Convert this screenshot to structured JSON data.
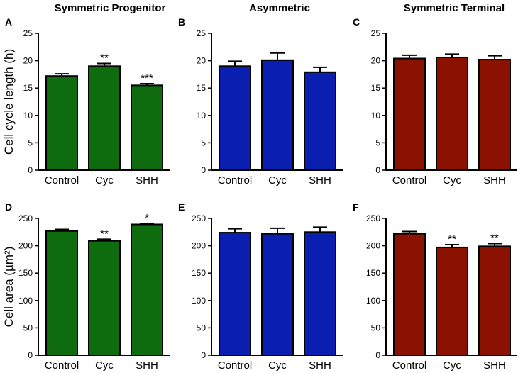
{
  "figure": {
    "column_titles": [
      "Symmetric Progenitor",
      "Asymmetric",
      "Symmetric Terminal"
    ]
  },
  "colors": {
    "green": "#0e6b0e",
    "blue": "#0a1fb0",
    "red": "#8b1200",
    "axis": "#000000"
  },
  "chart_data": [
    {
      "panel": "A",
      "type": "bar",
      "row": 0,
      "col": 0,
      "color": "green",
      "categories": [
        "Control",
        "Cyc",
        "SHH"
      ],
      "values": [
        17.2,
        19.0,
        15.5
      ],
      "errors": [
        0.4,
        0.5,
        0.3
      ],
      "significance": [
        "",
        "**",
        "***"
      ],
      "ylabel": "Cell cycle length (h)",
      "ylim": [
        0,
        25
      ],
      "yticks": [
        0,
        5,
        10,
        15,
        20,
        25
      ]
    },
    {
      "panel": "B",
      "type": "bar",
      "row": 0,
      "col": 1,
      "color": "blue",
      "categories": [
        "Control",
        "Cyc",
        "SHH"
      ],
      "values": [
        19.0,
        20.1,
        17.9
      ],
      "errors": [
        0.9,
        1.3,
        0.9
      ],
      "significance": [
        "",
        "",
        ""
      ],
      "ylabel": "",
      "ylim": [
        0,
        25
      ],
      "yticks": [
        0,
        5,
        10,
        15,
        20,
        25
      ]
    },
    {
      "panel": "C",
      "type": "bar",
      "row": 0,
      "col": 2,
      "color": "red",
      "categories": [
        "Control",
        "Cyc",
        "SHH"
      ],
      "values": [
        20.4,
        20.6,
        20.2
      ],
      "errors": [
        0.6,
        0.6,
        0.7
      ],
      "significance": [
        "",
        "",
        ""
      ],
      "ylabel": "",
      "ylim": [
        0,
        25
      ],
      "yticks": [
        0,
        5,
        10,
        15,
        20,
        25
      ]
    },
    {
      "panel": "D",
      "type": "bar",
      "row": 1,
      "col": 0,
      "color": "green",
      "categories": [
        "Control",
        "Cyc",
        "SHH"
      ],
      "values": [
        227,
        209,
        239
      ],
      "errors": [
        3,
        3,
        2
      ],
      "significance": [
        "",
        "**",
        "*"
      ],
      "ylabel": "Cell area (µm²)",
      "ylim": [
        0,
        250
      ],
      "yticks": [
        0,
        50,
        100,
        150,
        200,
        250
      ]
    },
    {
      "panel": "E",
      "type": "bar",
      "row": 1,
      "col": 1,
      "color": "blue",
      "categories": [
        "Control",
        "Cyc",
        "SHH"
      ],
      "values": [
        224,
        222,
        225
      ],
      "errors": [
        7,
        10,
        9
      ],
      "significance": [
        "",
        "",
        ""
      ],
      "ylabel": "",
      "ylim": [
        0,
        250
      ],
      "yticks": [
        0,
        50,
        100,
        150,
        200,
        250
      ]
    },
    {
      "panel": "F",
      "type": "bar",
      "row": 1,
      "col": 2,
      "color": "red",
      "categories": [
        "Control",
        "Cyc",
        "SHH"
      ],
      "values": [
        222,
        197,
        199
      ],
      "errors": [
        4,
        5,
        5
      ],
      "significance": [
        "",
        "**",
        "**"
      ],
      "ylabel": "",
      "ylim": [
        0,
        250
      ],
      "yticks": [
        0,
        50,
        100,
        150,
        200,
        250
      ]
    }
  ]
}
